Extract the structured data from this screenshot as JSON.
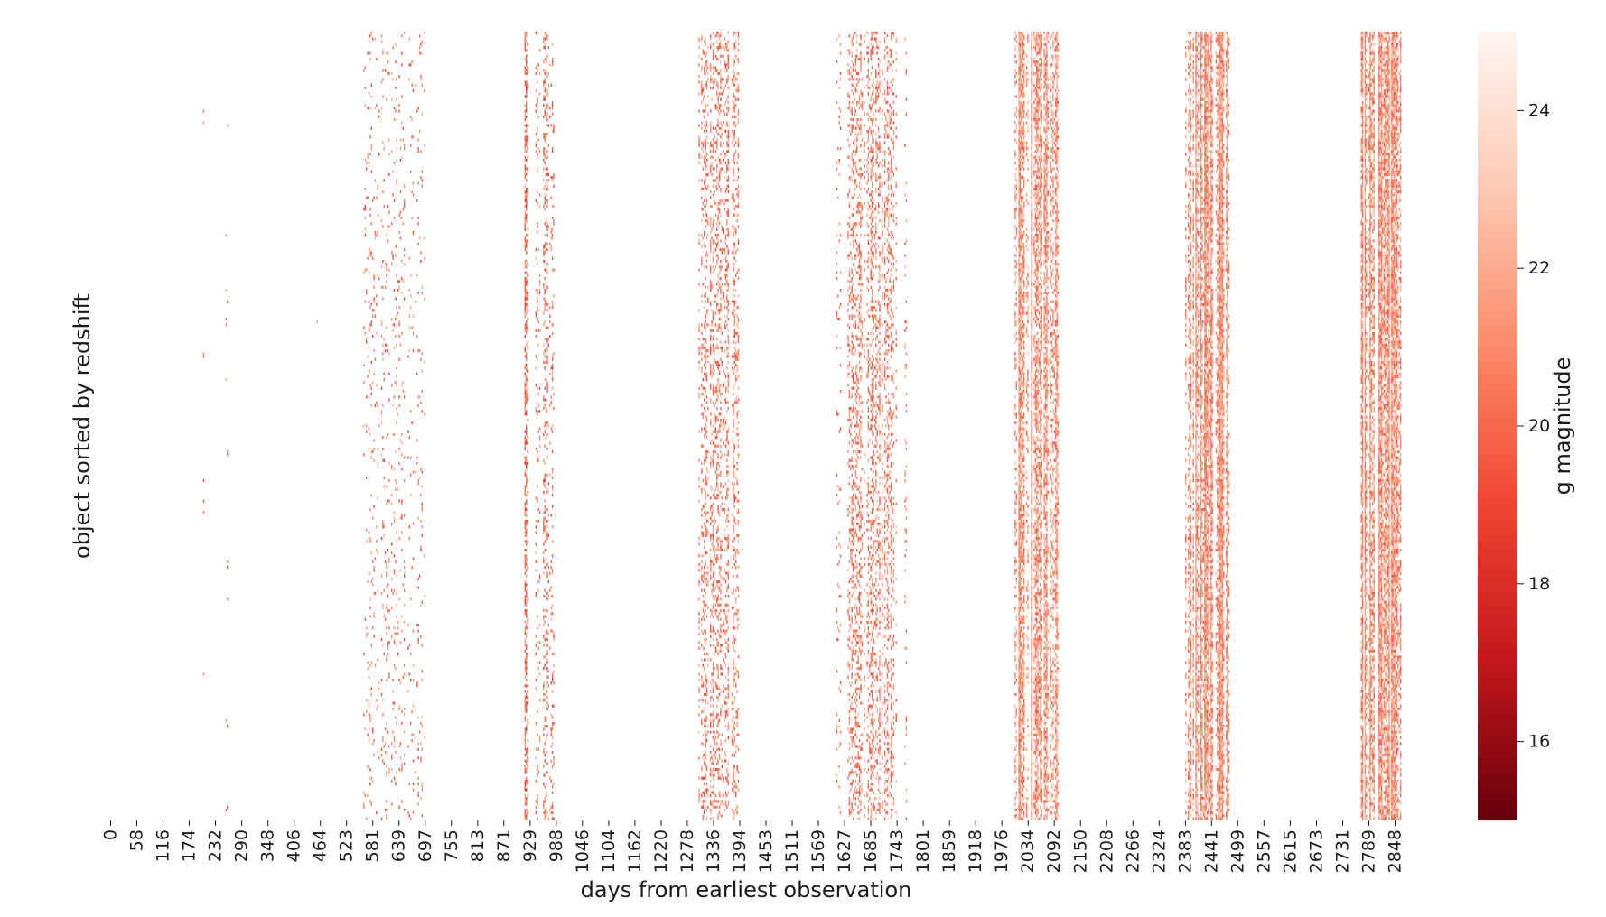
{
  "chart_data": {
    "type": "heatmap",
    "title": "",
    "xlabel": "days from earliest observation",
    "ylabel": "object sorted by redshift",
    "x_tick_labels": [
      "0",
      "58",
      "116",
      "174",
      "232",
      "290",
      "348",
      "406",
      "464",
      "523",
      "581",
      "639",
      "697",
      "755",
      "813",
      "871",
      "929",
      "988",
      "1046",
      "1104",
      "1162",
      "1220",
      "1278",
      "1336",
      "1394",
      "1453",
      "1511",
      "1569",
      "1627",
      "1685",
      "1743",
      "1801",
      "1859",
      "1918",
      "1976",
      "2034",
      "2092",
      "2150",
      "2208",
      "2266",
      "2324",
      "2383",
      "2441",
      "2499",
      "2557",
      "2615",
      "2673",
      "2731",
      "2789",
      "2848"
    ],
    "xlim": [
      0,
      2880
    ],
    "y_tick_labels": [],
    "colormap": "Reds_r",
    "colorbar": {
      "label": "g magnitude",
      "range": [
        15,
        25
      ],
      "ticks": [
        16,
        18,
        20,
        22,
        24
      ],
      "tick_labels": [
        "16",
        "18",
        "20",
        "22",
        "24"
      ]
    },
    "observing_seasons": [
      {
        "start_day": 229,
        "end_day": 233,
        "coverage": 0.03,
        "mean_mag": 20.5
      },
      {
        "start_day": 281,
        "end_day": 285,
        "coverage": 0.015,
        "mean_mag": 20.5
      },
      {
        "start_day": 481,
        "end_day": 484,
        "coverage": 0.005,
        "mean_mag": 20.5
      },
      {
        "start_day": 584,
        "end_day": 720,
        "coverage": 0.07,
        "mean_mag": 20.6
      },
      {
        "start_day": 938,
        "end_day": 946,
        "coverage": 0.55,
        "mean_mag": 20.3
      },
      {
        "start_day": 962,
        "end_day": 1004,
        "coverage": 0.22,
        "mean_mag": 20.5
      },
      {
        "start_day": 1318,
        "end_day": 1408,
        "coverage": 0.28,
        "mean_mag": 20.8
      },
      {
        "start_day": 1623,
        "end_day": 1632,
        "coverage": 0.07,
        "mean_mag": 20.5
      },
      {
        "start_day": 1648,
        "end_day": 1755,
        "coverage": 0.3,
        "mean_mag": 20.8
      },
      {
        "start_day": 1773,
        "end_day": 1778,
        "coverage": 0.12,
        "mean_mag": 20.8
      },
      {
        "start_day": 2015,
        "end_day": 2110,
        "coverage": 0.62,
        "mean_mag": 21.2
      },
      {
        "start_day": 2390,
        "end_day": 2490,
        "coverage": 0.68,
        "mean_mag": 21.2
      },
      {
        "start_day": 2773,
        "end_day": 2862,
        "coverage": 0.66,
        "mean_mag": 21.2
      }
    ],
    "grid": false
  }
}
